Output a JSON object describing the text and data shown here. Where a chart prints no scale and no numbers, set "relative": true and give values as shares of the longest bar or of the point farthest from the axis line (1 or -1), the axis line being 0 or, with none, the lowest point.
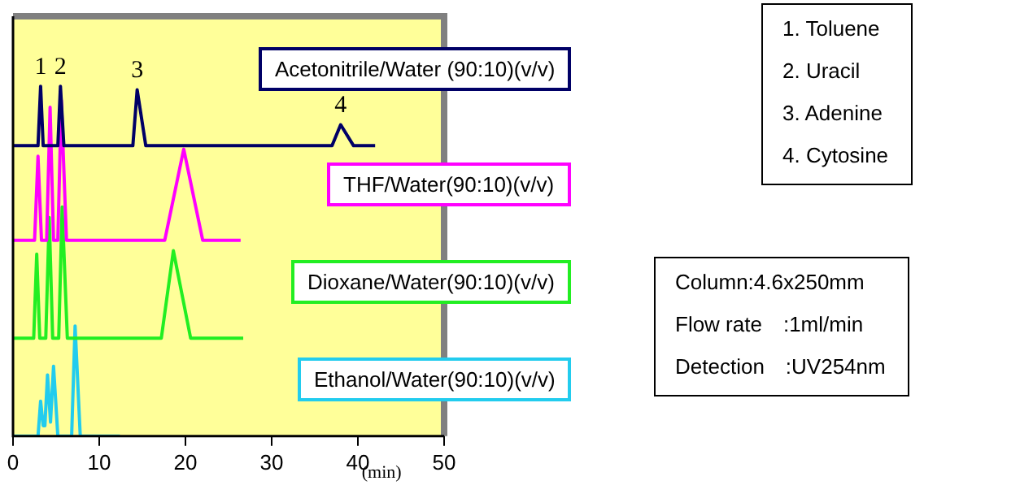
{
  "chart_data": {
    "type": "line",
    "relative": true,
    "xlabel": "(min)",
    "xlim": [
      0,
      50
    ],
    "xticks": [
      0,
      10,
      20,
      30,
      40,
      50
    ],
    "legend": false,
    "marker": "none",
    "series": [
      {
        "name": "Acetonitrile/Water (90:10)(v/v)",
        "color": "#000066",
        "x": [
          0,
          2.9,
          3.2,
          3.5,
          5.2,
          5.5,
          5.9,
          13.9,
          14.4,
          15.4,
          37.0,
          38.0,
          39.5,
          42.0
        ],
        "values": [
          0.83,
          0.83,
          1.0,
          0.83,
          0.83,
          1.0,
          0.83,
          0.83,
          0.99,
          0.83,
          0.83,
          0.89,
          0.83,
          0.83
        ]
      },
      {
        "name": "THF/Water(90:10)(v/v)",
        "color": "#ff00ff",
        "x": [
          0,
          2.5,
          2.9,
          3.3,
          3.9,
          4.3,
          4.7,
          5.2,
          5.6,
          6.2,
          17.6,
          19.8,
          22.0,
          26.4
        ],
        "values": [
          0.56,
          0.56,
          0.8,
          0.56,
          0.56,
          0.94,
          0.56,
          0.56,
          0.96,
          0.56,
          0.56,
          0.82,
          0.56,
          0.56
        ]
      },
      {
        "name": "Dioxane/Water(90:10)(v/v)",
        "color": "#22ee22",
        "x": [
          0,
          2.4,
          2.75,
          3.1,
          3.8,
          4.2,
          4.6,
          5.3,
          5.7,
          6.3,
          17.2,
          18.6,
          20.6,
          26.7
        ],
        "values": [
          0.28,
          0.28,
          0.52,
          0.28,
          0.28,
          0.625,
          0.28,
          0.28,
          0.655,
          0.28,
          0.28,
          0.53,
          0.28,
          0.28
        ]
      },
      {
        "name": "Ethanol/Water(90:10)(v/v)",
        "color": "#22ccee",
        "x": [
          0,
          2.9,
          3.2,
          3.5,
          3.7,
          4.0,
          4.35,
          4.7,
          5.2,
          6.8,
          7.2,
          7.8,
          12.4
        ],
        "values": [
          0,
          0,
          0.1,
          0.03,
          0.03,
          0.175,
          0.04,
          0.2,
          0,
          0,
          0.315,
          0,
          0
        ]
      }
    ],
    "annotations": [
      {
        "text": "1",
        "x": 3.2,
        "y": 1.0
      },
      {
        "text": "2",
        "x": 5.5,
        "y": 1.0
      },
      {
        "text": "3",
        "x": 14.4,
        "y": 0.99
      },
      {
        "text": "4",
        "x": 38.0,
        "y": 0.89
      },
      "1. Toluene\n2. Uracil\n3. Adenine\n4. Cytosine",
      "Column:4.6x250mm\nFlow rate　:1ml/min\nDetection　:UV254nm"
    ]
  }
}
